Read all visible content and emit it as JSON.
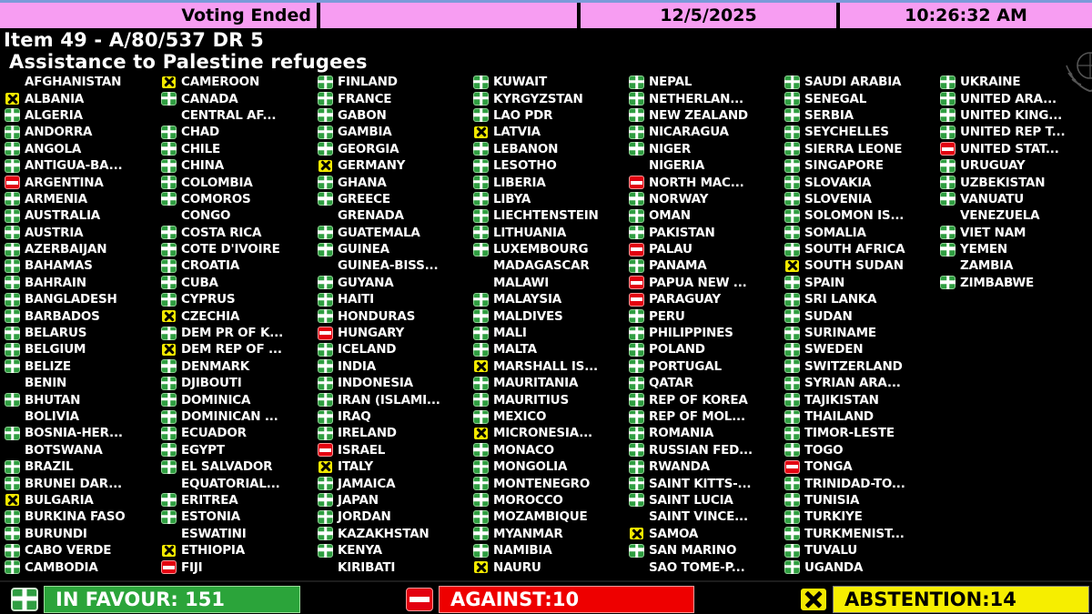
{
  "header": {
    "status": "Voting Ended",
    "date": "12/5/2025",
    "time": "10:26:32 AM"
  },
  "title": {
    "line1": "Item 49 - A/80/537 DR 5",
    "line2": "Assistance to Palestine refugees"
  },
  "summary": {
    "favour_label": "IN FAVOUR: 151",
    "against_label": "AGAINST:10",
    "abstention_label": "ABSTENTION:14",
    "favour_count": 151,
    "against_count": 10,
    "abstention_count": 14
  },
  "colors": {
    "header_pink": "#f79df2",
    "favour_green": "#2f9e41",
    "against_red": "#e30010",
    "abstain_yellow": "#f2e800",
    "summary_green": "#2ba43a",
    "summary_red": "#ee0000",
    "summary_yellow": "#f6ee00"
  },
  "vote_legend": {
    "f": "in-favour",
    "a": "against",
    "x": "abstention",
    "n": "not-voting"
  },
  "columns": [
    [
      {
        "name": "AFGHANISTAN",
        "vote": "n"
      },
      {
        "name": "ALBANIA",
        "vote": "x"
      },
      {
        "name": "ALGERIA",
        "vote": "f"
      },
      {
        "name": "ANDORRA",
        "vote": "f"
      },
      {
        "name": "ANGOLA",
        "vote": "f"
      },
      {
        "name": "ANTIGUA-BA...",
        "vote": "f"
      },
      {
        "name": "ARGENTINA",
        "vote": "a"
      },
      {
        "name": "ARMENIA",
        "vote": "f"
      },
      {
        "name": "AUSTRALIA",
        "vote": "f"
      },
      {
        "name": "AUSTRIA",
        "vote": "f"
      },
      {
        "name": "AZERBAIJAN",
        "vote": "f"
      },
      {
        "name": "BAHAMAS",
        "vote": "f"
      },
      {
        "name": "BAHRAIN",
        "vote": "f"
      },
      {
        "name": "BANGLADESH",
        "vote": "f"
      },
      {
        "name": "BARBADOS",
        "vote": "f"
      },
      {
        "name": "BELARUS",
        "vote": "f"
      },
      {
        "name": "BELGIUM",
        "vote": "f"
      },
      {
        "name": "BELIZE",
        "vote": "f"
      },
      {
        "name": "BENIN",
        "vote": "n"
      },
      {
        "name": "BHUTAN",
        "vote": "f"
      },
      {
        "name": "BOLIVIA",
        "vote": "n"
      },
      {
        "name": "BOSNIA-HER...",
        "vote": "f"
      },
      {
        "name": "BOTSWANA",
        "vote": "n"
      },
      {
        "name": "BRAZIL",
        "vote": "f"
      },
      {
        "name": "BRUNEI DAR...",
        "vote": "f"
      },
      {
        "name": "BULGARIA",
        "vote": "x"
      },
      {
        "name": "BURKINA FASO",
        "vote": "f"
      },
      {
        "name": "BURUNDI",
        "vote": "f"
      },
      {
        "name": "CABO VERDE",
        "vote": "f"
      },
      {
        "name": "CAMBODIA",
        "vote": "f"
      }
    ],
    [
      {
        "name": "CAMEROON",
        "vote": "x"
      },
      {
        "name": "CANADA",
        "vote": "f"
      },
      {
        "name": "CENTRAL AF...",
        "vote": "n"
      },
      {
        "name": "CHAD",
        "vote": "f"
      },
      {
        "name": "CHILE",
        "vote": "f"
      },
      {
        "name": "CHINA",
        "vote": "f"
      },
      {
        "name": "COLOMBIA",
        "vote": "f"
      },
      {
        "name": "COMOROS",
        "vote": "f"
      },
      {
        "name": "CONGO",
        "vote": "n"
      },
      {
        "name": "COSTA RICA",
        "vote": "f"
      },
      {
        "name": "COTE D'IVOIRE",
        "vote": "f"
      },
      {
        "name": "CROATIA",
        "vote": "f"
      },
      {
        "name": "CUBA",
        "vote": "f"
      },
      {
        "name": "CYPRUS",
        "vote": "f"
      },
      {
        "name": "CZECHIA",
        "vote": "x"
      },
      {
        "name": "DEM PR OF K...",
        "vote": "f"
      },
      {
        "name": "DEM REP OF ...",
        "vote": "x"
      },
      {
        "name": "DENMARK",
        "vote": "f"
      },
      {
        "name": "DJIBOUTI",
        "vote": "f"
      },
      {
        "name": "DOMINICA",
        "vote": "f"
      },
      {
        "name": "DOMINICAN ...",
        "vote": "f"
      },
      {
        "name": "ECUADOR",
        "vote": "f"
      },
      {
        "name": "EGYPT",
        "vote": "f"
      },
      {
        "name": "EL SALVADOR",
        "vote": "f"
      },
      {
        "name": "EQUATORIAL...",
        "vote": "n"
      },
      {
        "name": "ERITREA",
        "vote": "f"
      },
      {
        "name": "ESTONIA",
        "vote": "f"
      },
      {
        "name": "ESWATINI",
        "vote": "n"
      },
      {
        "name": "ETHIOPIA",
        "vote": "x"
      },
      {
        "name": "FIJI",
        "vote": "a"
      }
    ],
    [
      {
        "name": "FINLAND",
        "vote": "f"
      },
      {
        "name": "FRANCE",
        "vote": "f"
      },
      {
        "name": "GABON",
        "vote": "f"
      },
      {
        "name": "GAMBIA",
        "vote": "f"
      },
      {
        "name": "GEORGIA",
        "vote": "f"
      },
      {
        "name": "GERMANY",
        "vote": "x"
      },
      {
        "name": "GHANA",
        "vote": "f"
      },
      {
        "name": "GREECE",
        "vote": "f"
      },
      {
        "name": "GRENADA",
        "vote": "n"
      },
      {
        "name": "GUATEMALA",
        "vote": "f"
      },
      {
        "name": "GUINEA",
        "vote": "f"
      },
      {
        "name": "GUINEA-BISS...",
        "vote": "n"
      },
      {
        "name": "GUYANA",
        "vote": "f"
      },
      {
        "name": "HAITI",
        "vote": "f"
      },
      {
        "name": "HONDURAS",
        "vote": "f"
      },
      {
        "name": "HUNGARY",
        "vote": "a"
      },
      {
        "name": "ICELAND",
        "vote": "f"
      },
      {
        "name": "INDIA",
        "vote": "f"
      },
      {
        "name": "INDONESIA",
        "vote": "f"
      },
      {
        "name": "IRAN (ISLAMI...",
        "vote": "f"
      },
      {
        "name": "IRAQ",
        "vote": "f"
      },
      {
        "name": "IRELAND",
        "vote": "f"
      },
      {
        "name": "ISRAEL",
        "vote": "a"
      },
      {
        "name": "ITALY",
        "vote": "x"
      },
      {
        "name": "JAMAICA",
        "vote": "f"
      },
      {
        "name": "JAPAN",
        "vote": "f"
      },
      {
        "name": "JORDAN",
        "vote": "f"
      },
      {
        "name": "KAZAKHSTAN",
        "vote": "f"
      },
      {
        "name": "KENYA",
        "vote": "f"
      },
      {
        "name": "KIRIBATI",
        "vote": "n"
      }
    ],
    [
      {
        "name": "KUWAIT",
        "vote": "f"
      },
      {
        "name": "KYRGYZSTAN",
        "vote": "f"
      },
      {
        "name": "LAO PDR",
        "vote": "f"
      },
      {
        "name": "LATVIA",
        "vote": "x"
      },
      {
        "name": "LEBANON",
        "vote": "f"
      },
      {
        "name": "LESOTHO",
        "vote": "f"
      },
      {
        "name": "LIBERIA",
        "vote": "f"
      },
      {
        "name": "LIBYA",
        "vote": "f"
      },
      {
        "name": "LIECHTENSTEIN",
        "vote": "f"
      },
      {
        "name": "LITHUANIA",
        "vote": "f"
      },
      {
        "name": "LUXEMBOURG",
        "vote": "f"
      },
      {
        "name": "MADAGASCAR",
        "vote": "n"
      },
      {
        "name": "MALAWI",
        "vote": "n"
      },
      {
        "name": "MALAYSIA",
        "vote": "f"
      },
      {
        "name": "MALDIVES",
        "vote": "f"
      },
      {
        "name": "MALI",
        "vote": "f"
      },
      {
        "name": "MALTA",
        "vote": "f"
      },
      {
        "name": "MARSHALL IS...",
        "vote": "x"
      },
      {
        "name": "MAURITANIA",
        "vote": "f"
      },
      {
        "name": "MAURITIUS",
        "vote": "f"
      },
      {
        "name": "MEXICO",
        "vote": "f"
      },
      {
        "name": "MICRONESIA...",
        "vote": "x"
      },
      {
        "name": "MONACO",
        "vote": "f"
      },
      {
        "name": "MONGOLIA",
        "vote": "f"
      },
      {
        "name": "MONTENEGRO",
        "vote": "f"
      },
      {
        "name": "MOROCCO",
        "vote": "f"
      },
      {
        "name": "MOZAMBIQUE",
        "vote": "f"
      },
      {
        "name": "MYANMAR",
        "vote": "f"
      },
      {
        "name": "NAMIBIA",
        "vote": "f"
      },
      {
        "name": "NAURU",
        "vote": "x"
      }
    ],
    [
      {
        "name": "NEPAL",
        "vote": "f"
      },
      {
        "name": "NETHERLAN...",
        "vote": "f"
      },
      {
        "name": "NEW ZEALAND",
        "vote": "f"
      },
      {
        "name": "NICARAGUA",
        "vote": "f"
      },
      {
        "name": "NIGER",
        "vote": "f"
      },
      {
        "name": "NIGERIA",
        "vote": "n"
      },
      {
        "name": "NORTH MAC...",
        "vote": "a"
      },
      {
        "name": "NORWAY",
        "vote": "f"
      },
      {
        "name": "OMAN",
        "vote": "f"
      },
      {
        "name": "PAKISTAN",
        "vote": "f"
      },
      {
        "name": "PALAU",
        "vote": "a"
      },
      {
        "name": "PANAMA",
        "vote": "f"
      },
      {
        "name": "PAPUA NEW ...",
        "vote": "a"
      },
      {
        "name": "PARAGUAY",
        "vote": "a"
      },
      {
        "name": "PERU",
        "vote": "f"
      },
      {
        "name": "PHILIPPINES",
        "vote": "f"
      },
      {
        "name": "POLAND",
        "vote": "f"
      },
      {
        "name": "PORTUGAL",
        "vote": "f"
      },
      {
        "name": "QATAR",
        "vote": "f"
      },
      {
        "name": "REP OF KOREA",
        "vote": "f"
      },
      {
        "name": "REP OF MOL...",
        "vote": "f"
      },
      {
        "name": "ROMANIA",
        "vote": "f"
      },
      {
        "name": "RUSSIAN FED...",
        "vote": "f"
      },
      {
        "name": "RWANDA",
        "vote": "f"
      },
      {
        "name": "SAINT KITTS-...",
        "vote": "f"
      },
      {
        "name": "SAINT LUCIA",
        "vote": "f"
      },
      {
        "name": "SAINT VINCE...",
        "vote": "n"
      },
      {
        "name": "SAMOA",
        "vote": "x"
      },
      {
        "name": "SAN MARINO",
        "vote": "f"
      },
      {
        "name": "SAO TOME-P...",
        "vote": "n"
      }
    ],
    [
      {
        "name": "SAUDI ARABIA",
        "vote": "f"
      },
      {
        "name": "SENEGAL",
        "vote": "f"
      },
      {
        "name": "SERBIA",
        "vote": "f"
      },
      {
        "name": "SEYCHELLES",
        "vote": "f"
      },
      {
        "name": "SIERRA LEONE",
        "vote": "f"
      },
      {
        "name": "SINGAPORE",
        "vote": "f"
      },
      {
        "name": "SLOVAKIA",
        "vote": "f"
      },
      {
        "name": "SLOVENIA",
        "vote": "f"
      },
      {
        "name": "SOLOMON IS...",
        "vote": "f"
      },
      {
        "name": "SOMALIA",
        "vote": "f"
      },
      {
        "name": "SOUTH AFRICA",
        "vote": "f"
      },
      {
        "name": "SOUTH SUDAN",
        "vote": "x"
      },
      {
        "name": "SPAIN",
        "vote": "f"
      },
      {
        "name": "SRI LANKA",
        "vote": "f"
      },
      {
        "name": "SUDAN",
        "vote": "f"
      },
      {
        "name": "SURINAME",
        "vote": "f"
      },
      {
        "name": "SWEDEN",
        "vote": "f"
      },
      {
        "name": "SWITZERLAND",
        "vote": "f"
      },
      {
        "name": "SYRIAN ARA...",
        "vote": "f"
      },
      {
        "name": "TAJIKISTAN",
        "vote": "f"
      },
      {
        "name": "THAILAND",
        "vote": "f"
      },
      {
        "name": "TIMOR-LESTE",
        "vote": "f"
      },
      {
        "name": "TOGO",
        "vote": "f"
      },
      {
        "name": "TONGA",
        "vote": "a"
      },
      {
        "name": "TRINIDAD-TO...",
        "vote": "f"
      },
      {
        "name": "TUNISIA",
        "vote": "f"
      },
      {
        "name": "TURKIYE",
        "vote": "f"
      },
      {
        "name": "TURKMENIST...",
        "vote": "f"
      },
      {
        "name": "TUVALU",
        "vote": "f"
      },
      {
        "name": "UGANDA",
        "vote": "f"
      }
    ],
    [
      {
        "name": "UKRAINE",
        "vote": "f"
      },
      {
        "name": "UNITED ARA...",
        "vote": "f"
      },
      {
        "name": "UNITED KING...",
        "vote": "f"
      },
      {
        "name": "UNITED REP T...",
        "vote": "f"
      },
      {
        "name": "UNITED STAT...",
        "vote": "a"
      },
      {
        "name": "URUGUAY",
        "vote": "f"
      },
      {
        "name": "UZBEKISTAN",
        "vote": "f"
      },
      {
        "name": "VANUATU",
        "vote": "f"
      },
      {
        "name": "VENEZUELA",
        "vote": "n"
      },
      {
        "name": "VIET NAM",
        "vote": "f"
      },
      {
        "name": "YEMEN",
        "vote": "f"
      },
      {
        "name": "ZAMBIA",
        "vote": "n"
      },
      {
        "name": "ZIMBABWE",
        "vote": "f"
      }
    ]
  ]
}
